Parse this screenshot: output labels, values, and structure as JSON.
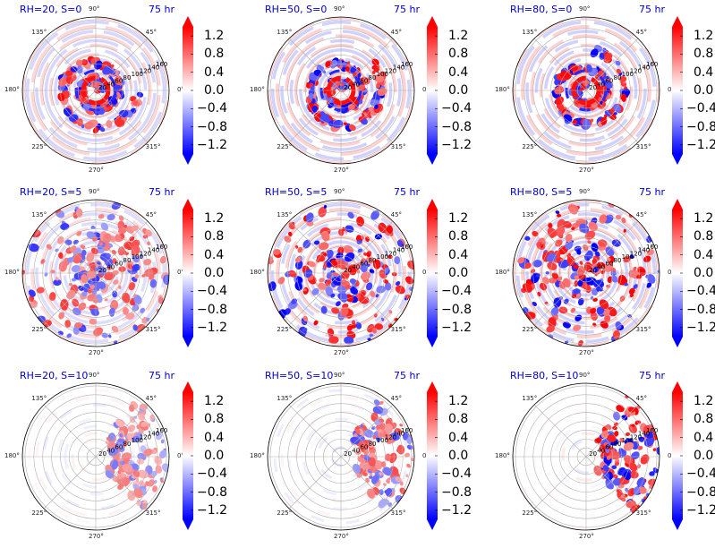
{
  "chart_data": {
    "type": "heatmap",
    "projection": "polar",
    "layout": {
      "rows": 3,
      "cols": 3
    },
    "colormap": "bwr",
    "color_levels": [
      -1.4,
      1.4
    ],
    "colorbar_ticks": [
      "1.2",
      "0.8",
      "0.4",
      "0.0",
      "−0.4",
      "−0.8",
      "−1.2"
    ],
    "angle_ticks": [
      "90°",
      "45°",
      "0°",
      "315°",
      "270°",
      "225°",
      "180°",
      "135°"
    ],
    "radial_ticks": [
      "20",
      "40",
      "60",
      "80",
      "100",
      "120",
      "140",
      "160"
    ],
    "grid": true,
    "panels": [
      {
        "title": "RH=20, S=0",
        "time": "75 hr",
        "pattern": "spiral",
        "intensity": 0.9
      },
      {
        "title": "RH=50, S=0",
        "time": "75 hr",
        "pattern": "spiral",
        "intensity": 1.0
      },
      {
        "title": "RH=80, S=0",
        "time": "75 hr",
        "pattern": "spiral",
        "intensity": 1.0
      },
      {
        "title": "RH=20, S=5",
        "time": "75 hr",
        "pattern": "sheared",
        "intensity": 0.75
      },
      {
        "title": "RH=50, S=5",
        "time": "75 hr",
        "pattern": "sheared",
        "intensity": 0.95
      },
      {
        "title": "RH=80, S=5",
        "time": "75 hr",
        "pattern": "sheared",
        "intensity": 1.0
      },
      {
        "title": "RH=20, S=10",
        "time": "75 hr",
        "pattern": "scattered",
        "intensity": 0.5
      },
      {
        "title": "RH=50, S=10",
        "time": "75 hr",
        "pattern": "scattered",
        "intensity": 0.65
      },
      {
        "title": "RH=80, S=10",
        "time": "75 hr",
        "pattern": "scattered",
        "intensity": 0.95
      }
    ]
  }
}
